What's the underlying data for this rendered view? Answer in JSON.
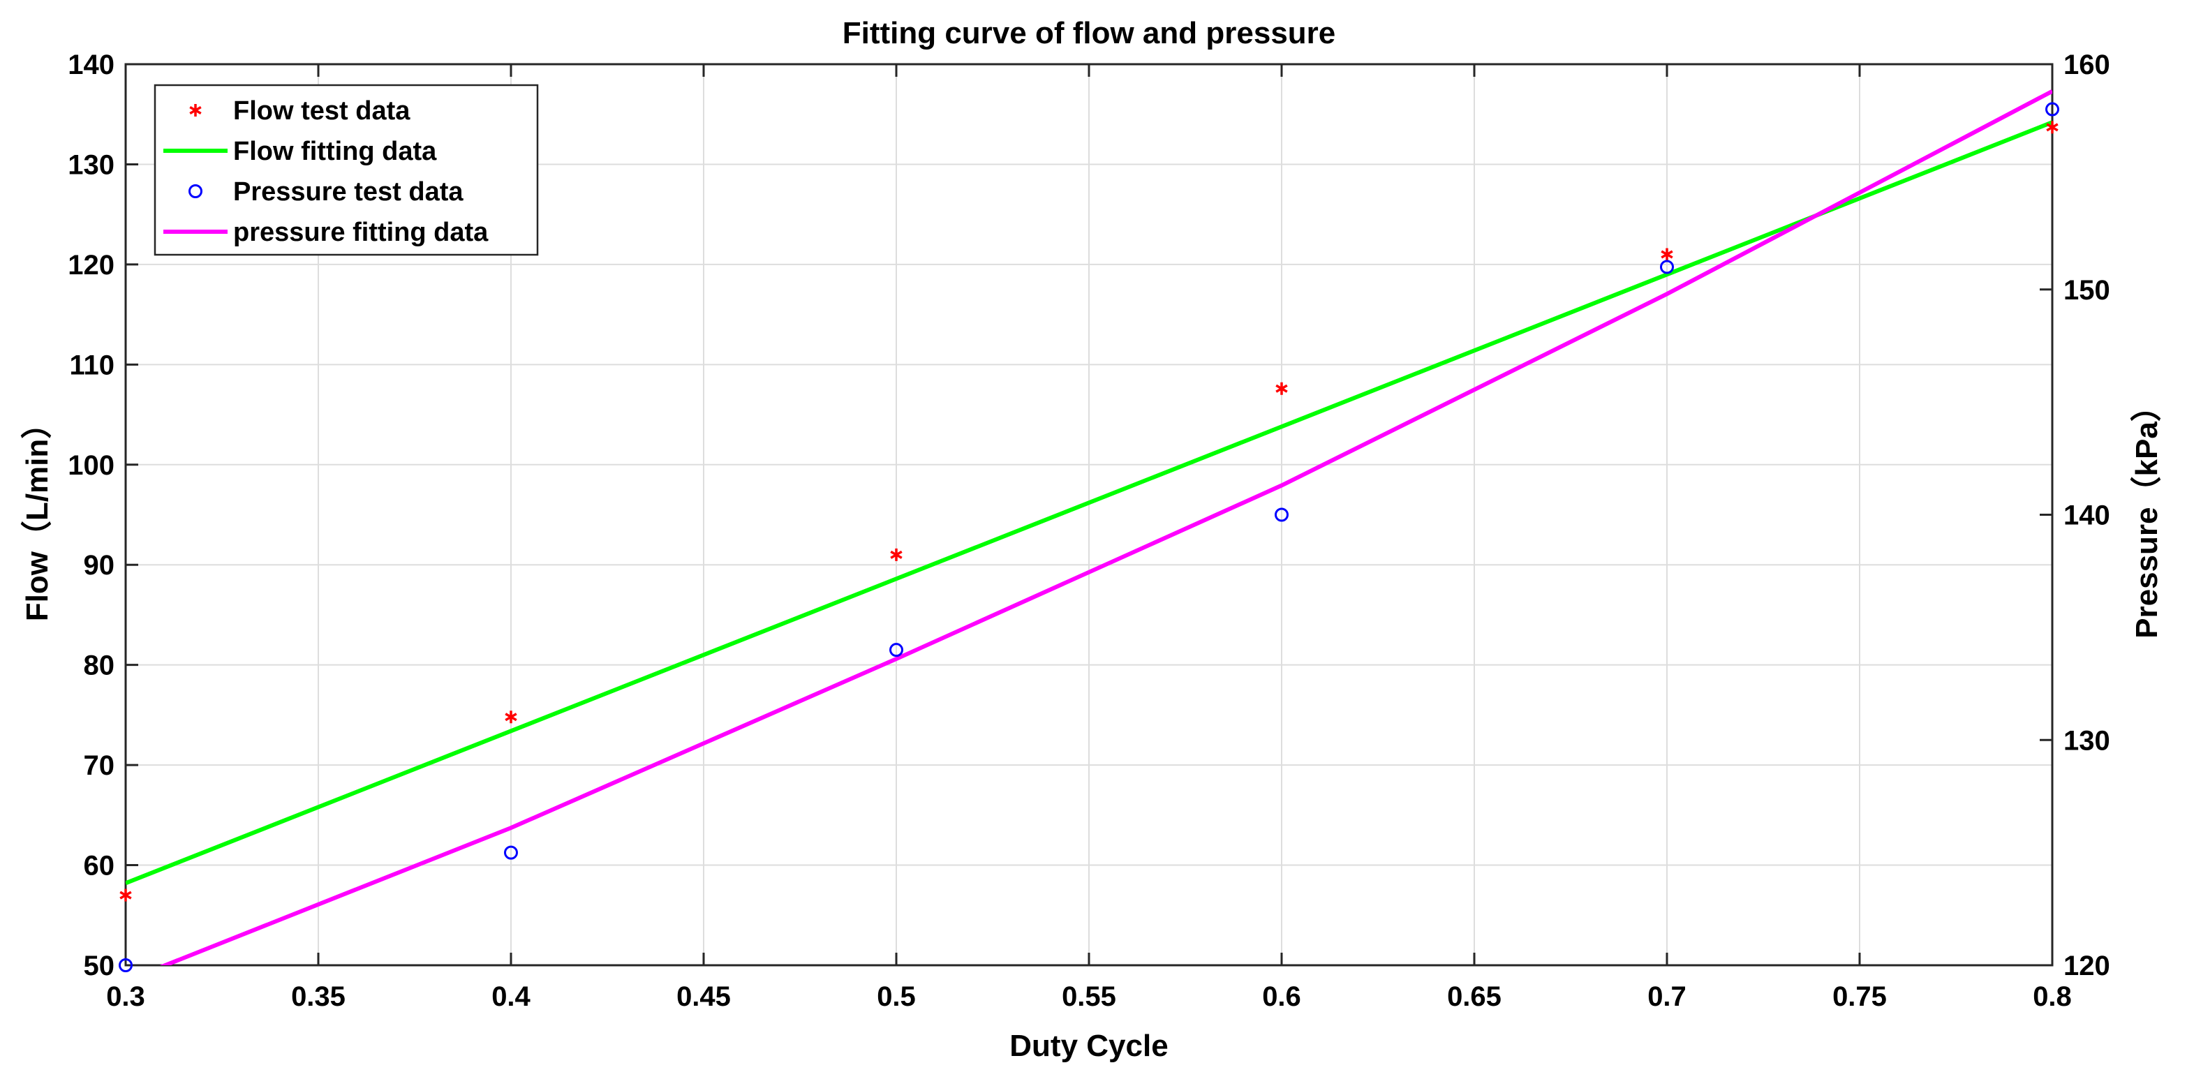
{
  "chart_data": {
    "type": "line",
    "title": "Fitting curve of flow and pressure",
    "xlabel": "Duty Cycle",
    "ylabel_left": "Flow（L/min）",
    "ylabel_right": "Pressure（kPa）",
    "xlim": [
      0.3,
      0.8
    ],
    "ylim_left": [
      50,
      140
    ],
    "ylim_right": [
      120,
      160
    ],
    "xticks": [
      "0.3",
      "0.35",
      "0.4",
      "0.45",
      "0.5",
      "0.55",
      "0.6",
      "0.65",
      "0.7",
      "0.75",
      "0.8"
    ],
    "xtick_values": [
      0.3,
      0.35,
      0.4,
      0.45,
      0.5,
      0.55,
      0.6,
      0.65,
      0.7,
      0.75,
      0.8
    ],
    "yticks_left": [
      "50",
      "60",
      "70",
      "80",
      "90",
      "100",
      "110",
      "120",
      "130",
      "140"
    ],
    "ytick_values_left": [
      50,
      60,
      70,
      80,
      90,
      100,
      110,
      120,
      130,
      140
    ],
    "yticks_right": [
      "120",
      "130",
      "140",
      "150",
      "160"
    ],
    "ytick_values_right": [
      120,
      130,
      140,
      150,
      160
    ],
    "grid": true,
    "legend_position": "top-left",
    "series": [
      {
        "name": "Flow test data",
        "axis": "left",
        "style": "marker-star",
        "color": "#ff0000",
        "x": [
          0.3,
          0.4,
          0.5,
          0.6,
          0.7,
          0.8
        ],
        "y": [
          57,
          74.8,
          91,
          107.6,
          121,
          133.7
        ]
      },
      {
        "name": "Flow fitting data",
        "axis": "left",
        "style": "line",
        "color": "#00ff00",
        "x": [
          0.3,
          0.8
        ],
        "y": [
          58.2,
          134.2
        ]
      },
      {
        "name": "Pressure test data",
        "axis": "right",
        "style": "marker-circle",
        "color": "#0000ff",
        "x": [
          0.3,
          0.4,
          0.5,
          0.6,
          0.7,
          0.8
        ],
        "y": [
          120,
          125,
          134,
          140,
          151,
          158
        ]
      },
      {
        "name": "pressure fitting data",
        "axis": "right",
        "style": "line",
        "color": "#ff00ff",
        "x": [
          0.3,
          0.4,
          0.5,
          0.6,
          0.7,
          0.8
        ],
        "y": [
          119.3,
          126.1,
          133.6,
          141.3,
          149.8,
          158.8
        ]
      }
    ]
  }
}
